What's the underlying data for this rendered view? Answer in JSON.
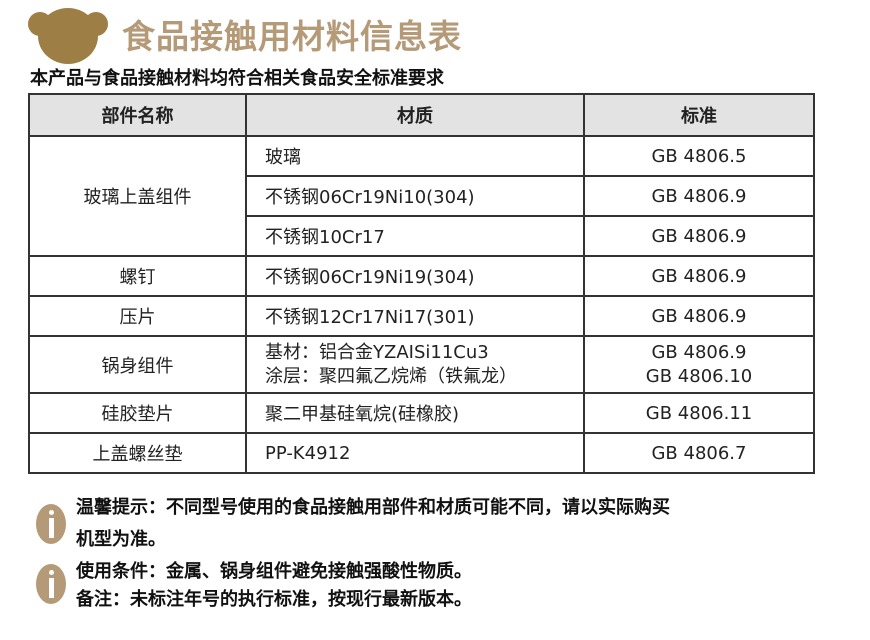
{
  "title": "食品接触用材料信息表",
  "subtitle": "本产品与食品接触材料均符合相关食品安全标准要求",
  "brand_color": "#b59a78",
  "table": {
    "headers": [
      "部件名称",
      "材质",
      "标准"
    ],
    "groups": [
      {
        "part": "玻璃上盖组件",
        "rows": [
          [
            "玻璃",
            "GB 4806.5"
          ],
          [
            "不锈钢06Cr19Ni10(304)",
            "GB 4806.9"
          ],
          [
            "不锈钢10Cr17",
            "GB 4806.9"
          ]
        ]
      },
      {
        "part": "螺钉",
        "rows": [
          [
            "不锈钢06Cr19Ni19(304)",
            "GB 4806.9"
          ]
        ]
      },
      {
        "part": "压片",
        "rows": [
          [
            "不锈钢12Cr17Ni17(301)",
            "GB 4806.9"
          ]
        ]
      },
      {
        "part": "锅身组件",
        "rows": [
          [
            "基材：铝合金YZAISi11Cu3",
            "GB 4806.9"
          ],
          [
            "涂层：聚四氟乙烷烯（铁氟龙）",
            "GB 4806.10"
          ]
        ],
        "merged": true
      },
      {
        "part": "硅胶垫片",
        "rows": [
          [
            "聚二甲基硅氧烷(硅橡胶)",
            "GB 4806.11"
          ]
        ]
      },
      {
        "part": "上盖螺丝垫",
        "rows": [
          [
            "PP-K4912",
            "GB 4806.7"
          ]
        ]
      }
    ]
  },
  "notes": [
    {
      "icon": "info-icon",
      "lines": [
        "温馨提示：不同型号使用的食品接触用部件和材质可能不同，请以实际购买",
        "机型为准。"
      ]
    },
    {
      "icon": "info-icon",
      "lines": [
        "使用条件：金属、锅身组件避免接触强酸性物质。",
        "备注：未标注年号的执行标准，按现行最新版本。"
      ]
    }
  ]
}
